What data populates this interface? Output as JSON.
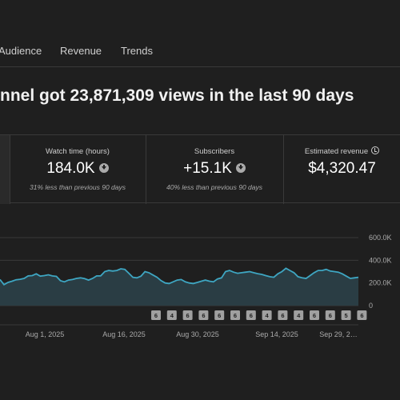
{
  "tabs": [
    {
      "label": "Audience"
    },
    {
      "label": "Revenue"
    },
    {
      "label": "Trends"
    }
  ],
  "headline": "nnel got 23,871,309 views in the last 90 days",
  "cards": [
    {
      "label": "Watch time (hours)",
      "value": "184.0K",
      "sub": "31% less than previous 90 days",
      "icon": "arrow-down-circle-icon"
    },
    {
      "label": "Subscribers",
      "value": "+15.1K",
      "sub": "40% less than previous 90 days",
      "icon": "arrow-down-circle-icon"
    },
    {
      "label": "Estimated revenue",
      "value": "$4,320.47",
      "sub": "",
      "icon": "clock-icon"
    }
  ],
  "colors": {
    "background": "#1f1f1f",
    "line": "#3ea6c2",
    "area": "#2a3d44",
    "badge": "#a0a0a0"
  },
  "chart_data": {
    "type": "area",
    "y_ticks": [
      "600.0K",
      "400.0K",
      "200.0K",
      "0"
    ],
    "ylim": [
      0,
      600000
    ],
    "x_ticks": [
      "Aug 1, 2025",
      "Aug 16, 2025",
      "Aug 30, 2025",
      "Sep 14, 2025",
      "Sep 29, 2…"
    ],
    "values": [
      230000,
      185000,
      205000,
      215000,
      228000,
      232000,
      240000,
      262000,
      265000,
      280000,
      260000,
      265000,
      272000,
      262000,
      258000,
      220000,
      210000,
      225000,
      230000,
      240000,
      245000,
      238000,
      225000,
      240000,
      262000,
      262000,
      300000,
      310000,
      305000,
      310000,
      325000,
      320000,
      285000,
      250000,
      245000,
      260000,
      300000,
      290000,
      270000,
      250000,
      220000,
      200000,
      195000,
      210000,
      225000,
      230000,
      210000,
      200000,
      195000,
      205000,
      215000,
      225000,
      215000,
      210000,
      235000,
      245000,
      300000,
      310000,
      295000,
      285000,
      290000,
      295000,
      300000,
      290000,
      282000,
      275000,
      265000,
      255000,
      250000,
      280000,
      300000,
      330000,
      310000,
      290000,
      255000,
      245000,
      240000,
      265000,
      290000,
      310000,
      310000,
      320000,
      305000,
      300000,
      295000,
      280000,
      260000,
      240000,
      245000,
      250000
    ],
    "badges": [
      "6",
      "4",
      "6",
      "6",
      "6",
      "6",
      "6",
      "4",
      "6",
      "4",
      "6",
      "6",
      "5",
      "6"
    ]
  }
}
